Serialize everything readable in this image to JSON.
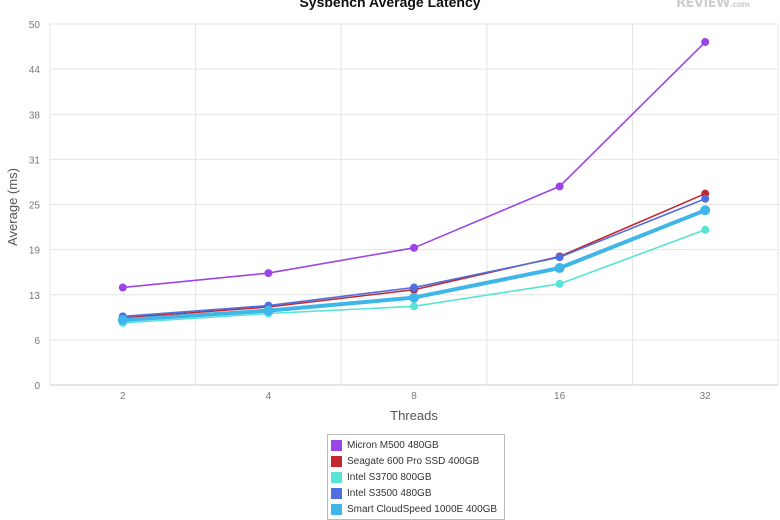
{
  "chart_data": {
    "type": "line",
    "title": "Sysbench Average Latency",
    "xlabel": "Threads",
    "ylabel": "Average (ms)",
    "categories": [
      "2",
      "4",
      "8",
      "16",
      "32"
    ],
    "yticks": [
      "0",
      "6",
      "13",
      "19",
      "25",
      "31",
      "38",
      "44",
      "50"
    ],
    "ylim": [
      0,
      50
    ],
    "grid": true,
    "legend_position": "bottom",
    "series": [
      {
        "name": "Micron M500 480GB",
        "color": "#9b44e8",
        "values": [
          13.5,
          15.5,
          19.0,
          27.5,
          47.5
        ]
      },
      {
        "name": "Seagate 600 Pro SSD 400GB",
        "color": "#c2282e",
        "values": [
          9.3,
          10.8,
          13.2,
          17.8,
          26.5
        ]
      },
      {
        "name": "Intel S3700 800GB",
        "color": "#56e4d5",
        "values": [
          8.6,
          9.9,
          10.9,
          14.0,
          21.5
        ]
      },
      {
        "name": "Intel S3500 480GB",
        "color": "#4f6fe0",
        "values": [
          9.5,
          11.0,
          13.5,
          17.7,
          25.8
        ]
      },
      {
        "name": "Smart CloudSpeed 1000E 400GB",
        "color": "#3fb6ea",
        "values": [
          9.0,
          10.3,
          12.1,
          16.2,
          24.2
        ]
      }
    ]
  },
  "watermark": {
    "text": "REVIEW",
    "suffix": ".com"
  }
}
